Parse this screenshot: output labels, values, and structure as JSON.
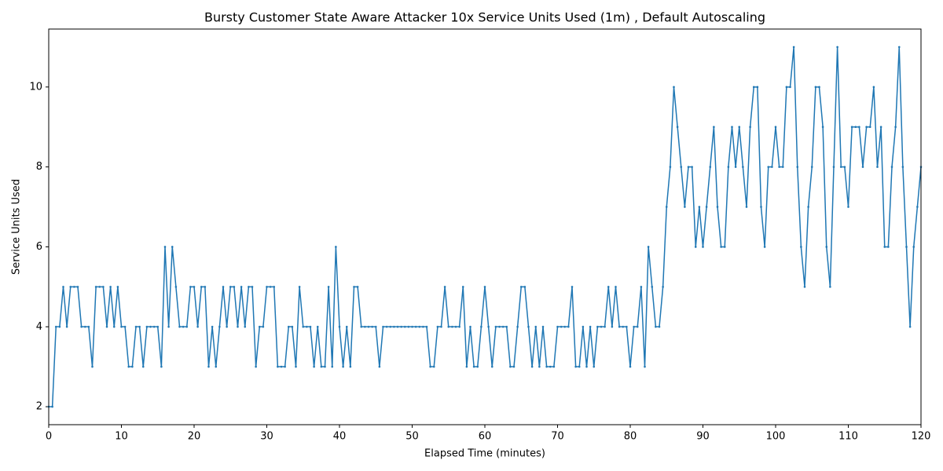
{
  "chart_data": {
    "type": "line",
    "title": "Bursty Customer State Aware Attacker 10x Service Units Used (1m) , Default Autoscaling",
    "x_label": "Elapsed Time (minutes)",
    "y_label": "Service Units Used",
    "x": [
      0,
      0.5,
      1,
      1.5,
      2,
      2.5,
      3,
      3.5,
      4,
      4.5,
      5,
      5.5,
      6,
      6.5,
      7,
      7.5,
      8,
      8.5,
      9,
      9.5,
      10,
      10.5,
      11,
      11.5,
      12,
      12.5,
      13,
      13.5,
      14,
      14.5,
      15,
      15.5,
      16,
      16.5,
      17,
      17.5,
      18,
      18.5,
      19,
      19.5,
      20,
      20.5,
      21,
      21.5,
      22,
      22.5,
      23,
      23.5,
      24,
      24.5,
      25,
      25.5,
      26,
      26.5,
      27,
      27.5,
      28,
      28.5,
      29,
      29.5,
      30,
      30.5,
      31,
      31.5,
      32,
      32.5,
      33,
      33.5,
      34,
      34.5,
      35,
      35.5,
      36,
      36.5,
      37,
      37.5,
      38,
      38.5,
      39,
      39.5,
      40,
      40.5,
      41,
      41.5,
      42,
      42.5,
      43,
      43.5,
      44,
      44.5,
      45,
      45.5,
      46,
      46.5,
      47,
      47.5,
      48,
      48.5,
      49,
      49.5,
      50,
      50.5,
      51,
      51.5,
      52,
      52.5,
      53,
      53.5,
      54,
      54.5,
      55,
      55.5,
      56,
      56.5,
      57,
      57.5,
      58,
      58.5,
      59,
      59.5,
      60,
      60.5,
      61,
      61.5,
      62,
      62.5,
      63,
      63.5,
      64,
      64.5,
      65,
      65.5,
      66,
      66.5,
      67,
      67.5,
      68,
      68.5,
      69,
      69.5,
      70,
      70.5,
      71,
      71.5,
      72,
      72.5,
      73,
      73.5,
      74,
      74.5,
      75,
      75.5,
      76,
      76.5,
      77,
      77.5,
      78,
      78.5,
      79,
      79.5,
      80,
      80.5,
      81,
      81.5,
      82,
      82.5,
      83,
      83.5,
      84,
      84.5,
      85,
      85.5,
      86,
      86.5,
      87,
      87.5,
      88,
      88.5,
      89,
      89.5,
      90,
      90.5,
      91,
      91.5,
      92,
      92.5,
      93,
      93.5,
      94,
      94.5,
      95,
      95.5,
      96,
      96.5,
      97,
      97.5,
      98,
      98.5,
      99,
      99.5,
      100,
      100.5,
      101,
      101.5,
      102,
      102.5,
      103,
      103.5,
      104,
      104.5,
      105,
      105.5,
      106,
      106.5,
      107,
      107.5,
      108,
      108.5,
      109,
      109.5,
      110,
      110.5,
      111,
      111.5,
      112,
      112.5,
      113,
      113.5,
      114,
      114.5,
      115,
      115.5,
      116,
      116.5,
      117,
      117.5,
      118,
      118.5,
      119,
      119.5,
      120
    ],
    "series": [
      {
        "name": "Service Units Used",
        "color": "#1f77b4",
        "values": [
          2,
          2,
          4,
          4,
          5,
          4,
          5,
          5,
          5,
          4,
          4,
          4,
          3,
          5,
          5,
          5,
          4,
          5,
          4,
          5,
          4,
          4,
          3,
          3,
          4,
          4,
          3,
          4,
          4,
          4,
          4,
          3,
          6,
          4,
          6,
          5,
          4,
          4,
          4,
          5,
          5,
          4,
          5,
          5,
          3,
          4,
          3,
          4,
          5,
          4,
          5,
          5,
          4,
          5,
          4,
          5,
          5,
          3,
          4,
          4,
          5,
          5,
          5,
          3,
          3,
          3,
          4,
          4,
          3,
          5,
          4,
          4,
          4,
          3,
          4,
          3,
          3,
          5,
          3,
          6,
          4,
          3,
          4,
          3,
          5,
          5,
          4,
          4,
          4,
          4,
          4,
          3,
          4,
          4,
          4,
          4,
          4,
          4,
          4,
          4,
          4,
          4,
          4,
          4,
          4,
          3,
          3,
          4,
          4,
          5,
          4,
          4,
          4,
          4,
          5,
          3,
          4,
          3,
          3,
          4,
          5,
          4,
          3,
          4,
          4,
          4,
          4,
          3,
          3,
          4,
          5,
          5,
          4,
          3,
          4,
          3,
          4,
          3,
          3,
          3,
          4,
          4,
          4,
          4,
          5,
          3,
          3,
          4,
          3,
          4,
          3,
          4,
          4,
          4,
          5,
          4,
          5,
          4,
          4,
          4,
          3,
          4,
          4,
          5,
          3,
          6,
          5,
          4,
          4,
          5,
          7,
          8,
          10,
          9,
          8,
          7,
          8,
          8,
          6,
          7,
          6,
          7,
          8,
          9,
          7,
          6,
          6,
          8,
          9,
          8,
          9,
          8,
          7,
          9,
          10,
          10,
          7,
          6,
          8,
          8,
          9,
          8,
          8,
          10,
          10,
          11,
          8,
          6,
          5,
          7,
          8,
          10,
          10,
          9,
          6,
          5,
          8,
          11,
          8,
          8,
          7,
          9,
          9,
          9,
          8,
          9,
          9,
          10,
          8,
          9,
          6,
          6,
          8,
          9,
          11,
          8,
          6,
          4,
          6,
          7,
          8
        ]
      }
    ],
    "xlim": [
      0,
      120
    ],
    "xticks": [
      0,
      10,
      20,
      30,
      40,
      50,
      60,
      70,
      80,
      90,
      100,
      110,
      120
    ],
    "ylim": [
      1.55,
      11.45
    ],
    "yticks": [
      2,
      4,
      6,
      8,
      10
    ]
  }
}
